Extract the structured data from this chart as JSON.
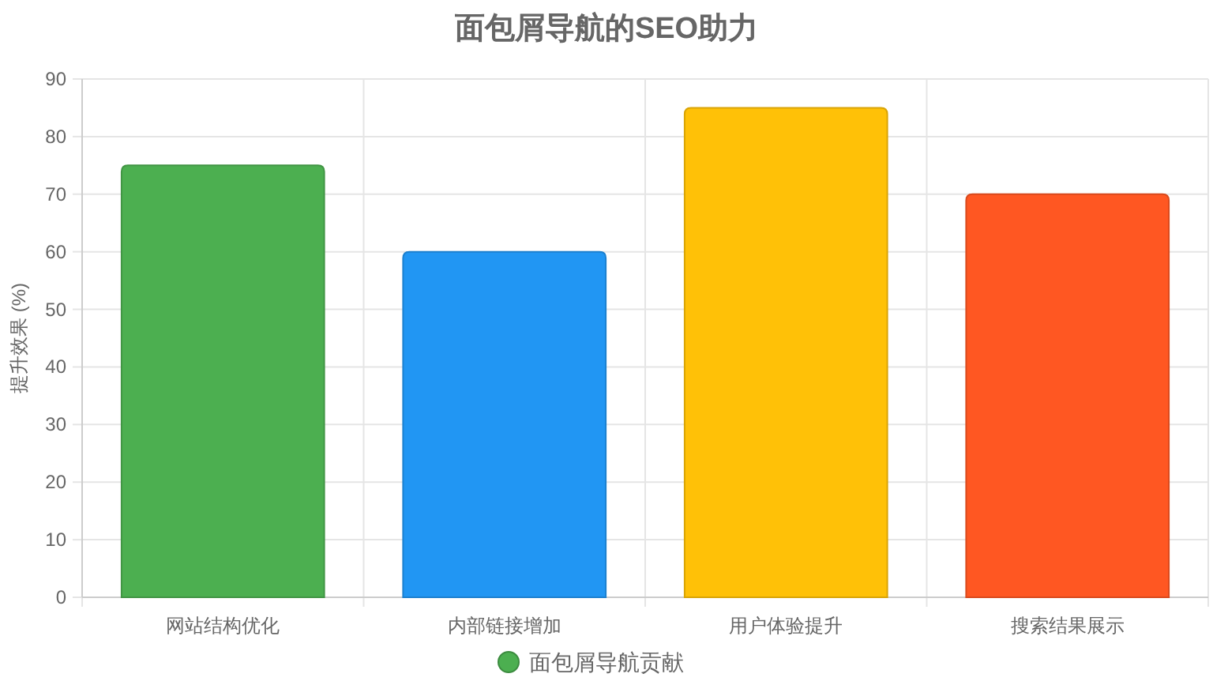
{
  "chart_data": {
    "type": "bar",
    "title": "面包屑导航的SEO助力",
    "ylabel": "提升效果 (%)",
    "categories": [
      "网站结构优化",
      "内部链接增加",
      "用户体验提升",
      "搜索结果展示"
    ],
    "series": [
      {
        "name": "面包屑导航贡献",
        "color": "#4caf50",
        "colors": [
          "#4caf50",
          "#2196f3",
          "#ffc107",
          "#ff5722"
        ],
        "values": [
          75,
          60,
          85,
          70
        ]
      }
    ],
    "ylim": [
      0,
      90
    ],
    "yticks": [
      0,
      10,
      20,
      30,
      40,
      50,
      60,
      70,
      80,
      90
    ],
    "grid": true,
    "legend": "bottom"
  }
}
